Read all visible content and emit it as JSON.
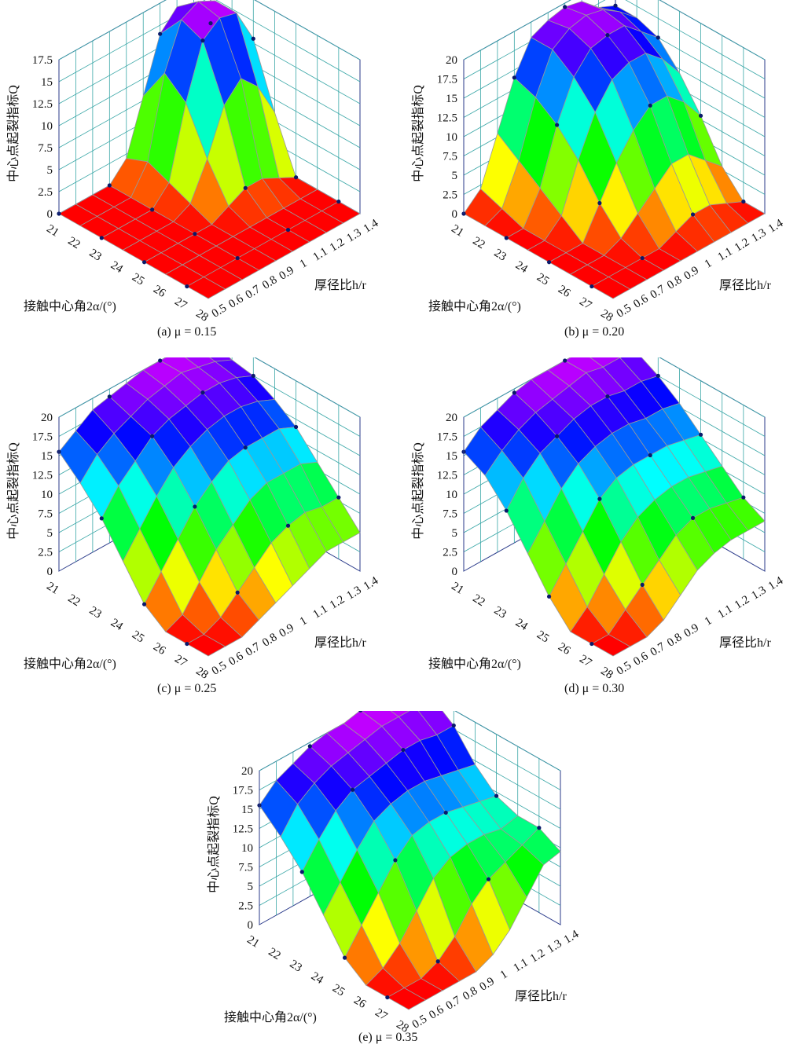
{
  "chart_data": [
    {
      "type": "surface3d",
      "caption": "(a) μ = 0.15",
      "zlabel": "中心点起裂指标Q",
      "xlabel": "接触中心角2α/(°)",
      "ylabel": "厚径比h/r",
      "x_ticks": [
        "21",
        "22",
        "23",
        "24",
        "25",
        "26",
        "27",
        "28"
      ],
      "y_ticks": [
        "0.5",
        "0.6",
        "0.7",
        "0.8",
        "0.9",
        "1",
        "1.1",
        "1.2",
        "1.3",
        "1.4"
      ],
      "z_ticks": [
        "0",
        "2.5",
        "5",
        "7.5",
        "10",
        "12.5",
        "15",
        "17.5"
      ],
      "zlim": [
        0,
        17.5
      ],
      "z": [
        [
          0,
          0,
          0,
          0,
          2,
          8,
          14,
          16,
          15,
          12
        ],
        [
          0,
          0,
          0,
          0,
          3,
          12,
          17,
          18,
          17,
          14
        ],
        [
          0,
          0,
          0,
          0,
          2,
          10,
          16,
          17.5,
          17,
          13
        ],
        [
          0,
          0,
          0,
          0,
          1,
          5,
          10,
          12,
          10,
          6
        ],
        [
          0,
          0,
          0,
          0,
          0,
          1,
          2,
          2,
          1,
          0
        ],
        [
          0,
          0,
          0,
          0,
          0,
          0,
          0,
          0,
          0,
          0
        ],
        [
          0,
          0,
          0,
          0,
          0,
          0,
          0,
          0,
          0,
          0
        ],
        [
          0,
          0,
          0,
          0,
          0,
          0,
          0,
          0,
          0,
          0
        ]
      ]
    },
    {
      "type": "surface3d",
      "caption": "(b) μ = 0.20",
      "zlabel": "中心点起裂指标Q",
      "xlabel": "接触中心角2α/(°)",
      "ylabel": "厚径比h/r",
      "x_ticks": [
        "21",
        "22",
        "23",
        "24",
        "25",
        "26",
        "27",
        "28"
      ],
      "y_ticks": [
        "0.5",
        "0.6",
        "0.7",
        "0.8",
        "0.9",
        "1",
        "1.1",
        "1.2",
        "1.3",
        "1.4"
      ],
      "z_ticks": [
        "0",
        "2.5",
        "5",
        "7.5",
        "10",
        "12.5",
        "15",
        "17.5",
        "20"
      ],
      "zlim": [
        0,
        20
      ],
      "z": [
        [
          0,
          2,
          8,
          14,
          18,
          19,
          19.5,
          19,
          17,
          16
        ],
        [
          0,
          1,
          6,
          13,
          18,
          19.5,
          20,
          19.5,
          18,
          16
        ],
        [
          0,
          0,
          4,
          11,
          16,
          18.5,
          19,
          19,
          17,
          15
        ],
        [
          0,
          0,
          2,
          8,
          13,
          16,
          17,
          17,
          15,
          12
        ],
        [
          0,
          0,
          0,
          4,
          8,
          11,
          13,
          13,
          11,
          8
        ],
        [
          0,
          0,
          0,
          1,
          3,
          5,
          7,
          7,
          5,
          3
        ],
        [
          0,
          0,
          0,
          0,
          0,
          1,
          2,
          2,
          1,
          0
        ],
        [
          0,
          0,
          0,
          0,
          0,
          0,
          0,
          0,
          0,
          0
        ]
      ]
    },
    {
      "type": "surface3d",
      "caption": "(c) μ = 0.25",
      "zlabel": "中心点起裂指标Q",
      "xlabel": "接触中心角2α/(°)",
      "ylabel": "厚径比h/r",
      "x_ticks": [
        "21",
        "22",
        "23",
        "24",
        "25",
        "26",
        "27",
        "28"
      ],
      "y_ticks": [
        "0.5",
        "0.6",
        "0.7",
        "0.8",
        "0.9",
        "1",
        "1.1",
        "1.2",
        "1.3",
        "1.4"
      ],
      "z_ticks": [
        "0",
        "2.5",
        "5",
        "7.5",
        "10",
        "12.5",
        "15",
        "17.5",
        "20"
      ],
      "zlim": [
        0,
        20
      ],
      "z": [
        [
          15.5,
          17,
          18.5,
          19,
          19.5,
          20,
          20,
          20,
          19.5,
          19
        ],
        [
          13,
          15.5,
          17,
          18,
          19,
          19.5,
          20,
          19.5,
          19,
          18
        ],
        [
          10,
          13,
          15,
          17,
          18,
          18.5,
          19,
          19,
          18.5,
          17.5
        ],
        [
          6,
          9,
          12,
          14.5,
          16,
          17,
          17.5,
          17.5,
          17,
          16
        ],
        [
          2,
          5,
          8,
          11,
          13,
          14.5,
          15,
          15,
          15,
          14
        ],
        [
          0,
          1,
          4,
          7,
          9,
          11,
          12,
          12,
          12,
          11
        ],
        [
          0,
          0,
          1,
          3,
          5,
          7,
          8,
          8.5,
          8,
          8
        ],
        [
          0,
          0,
          0,
          1,
          2,
          3,
          4,
          5,
          5,
          5
        ]
      ]
    },
    {
      "type": "surface3d",
      "caption": "(d) μ = 0.30",
      "zlabel": "中心点起裂指标Q",
      "xlabel": "接触中心角2α/(°)",
      "ylabel": "厚径比h/r",
      "x_ticks": [
        "21",
        "22",
        "23",
        "24",
        "25",
        "26",
        "27",
        "28"
      ],
      "y_ticks": [
        "0.5",
        "0.6",
        "0.7",
        "0.8",
        "0.9",
        "1",
        "1.1",
        "1.2",
        "1.3",
        "1.4"
      ],
      "z_ticks": [
        "0",
        "2.5",
        "5",
        "7.5",
        "10",
        "12.5",
        "15",
        "17.5",
        "20"
      ],
      "zlim": [
        0,
        20
      ],
      "z": [
        [
          15.5,
          17.5,
          18.5,
          19.5,
          20,
          20,
          20,
          20,
          20,
          20
        ],
        [
          14,
          16,
          17.5,
          18.5,
          19,
          19.5,
          20,
          19.5,
          19.5,
          19
        ],
        [
          11,
          14,
          16,
          17,
          18,
          18.5,
          18.5,
          18,
          18,
          17.5
        ],
        [
          7,
          10,
          13,
          15,
          16,
          16.5,
          16.5,
          16,
          16,
          15.5
        ],
        [
          3,
          6,
          9,
          12,
          13.5,
          14,
          14,
          14,
          13.5,
          13
        ],
        [
          0,
          2,
          5,
          8,
          10,
          11,
          11.5,
          11.5,
          11,
          10.5
        ],
        [
          0,
          0,
          2,
          4,
          6,
          8,
          9,
          9,
          8.5,
          8
        ],
        [
          0,
          0,
          0,
          1,
          3,
          5,
          6,
          6.5,
          6.5,
          6.5
        ]
      ]
    },
    {
      "type": "surface3d",
      "caption": "(e) μ = 0.35",
      "zlabel": "中心点起裂指标Q",
      "xlabel": "接触中心角2α/(°)",
      "ylabel": "厚径比h/r",
      "x_ticks": [
        "21",
        "22",
        "23",
        "24",
        "25",
        "26",
        "27",
        "28"
      ],
      "y_ticks": [
        "0.5",
        "0.6",
        "0.7",
        "0.8",
        "0.9",
        "1",
        "1.1",
        "1.2",
        "1.3",
        "1.4"
      ],
      "z_ticks": [
        "0",
        "2.5",
        "5",
        "7.5",
        "10",
        "12.5",
        "15",
        "17.5",
        "20"
      ],
      "zlim": [
        0,
        20
      ],
      "z": [
        [
          15.5,
          17.5,
          18.5,
          19.5,
          20,
          20,
          20.5,
          20.5,
          20.5,
          20.5
        ],
        [
          13,
          16,
          17.5,
          18.5,
          19,
          19.5,
          20,
          20,
          20,
          20
        ],
        [
          10,
          13,
          15.5,
          17,
          17.5,
          18,
          18.5,
          18.5,
          18,
          18
        ],
        [
          6,
          9,
          12,
          14.5,
          15.5,
          16,
          16,
          15.5,
          15,
          14.5
        ],
        [
          2,
          5,
          8,
          11,
          13,
          13.5,
          13.5,
          13,
          12.5,
          12
        ],
        [
          0,
          1,
          3,
          6,
          9,
          10.5,
          11,
          11,
          10.5,
          11
        ],
        [
          0,
          0,
          0,
          1,
          3,
          6,
          8,
          9,
          10,
          11
        ],
        [
          0,
          0,
          0,
          0,
          0,
          1,
          3,
          6,
          9,
          9.5
        ]
      ]
    }
  ]
}
